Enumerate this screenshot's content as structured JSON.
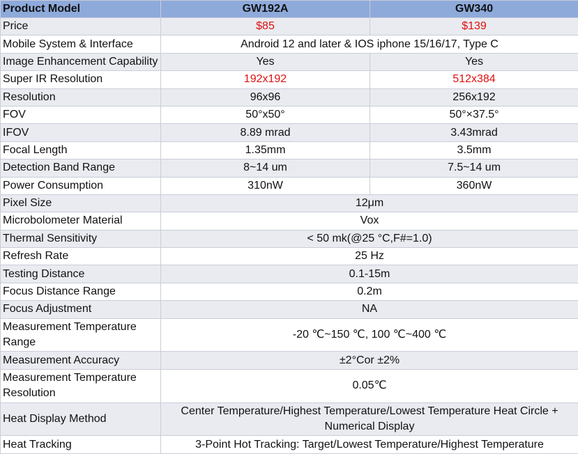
{
  "table": {
    "header": [
      "Product Model",
      "GW192A",
      "GW340"
    ],
    "rows": [
      [
        "Price",
        "$85",
        "$139"
      ],
      [
        "Mobile System & Interface",
        "Android 12 and later & IOS iphone 15/16/17, Type C"
      ],
      [
        "Image Enhancement Capability",
        "Yes",
        "Yes"
      ],
      [
        "Super IR Resolution",
        "192x192",
        "512x384"
      ],
      [
        "Resolution",
        "96x96",
        "256x192"
      ],
      [
        "FOV",
        "50°x50°",
        "50°×37.5°"
      ],
      [
        "IFOV",
        "8.89 mrad",
        "3.43mrad"
      ],
      [
        "Focal Length",
        "1.35mm",
        "3.5mm"
      ],
      [
        "Detection Band Range",
        "8~14 um",
        "7.5~14 um"
      ],
      [
        "Power Consumption",
        "310nW",
        "360nW"
      ],
      [
        "Pixel Size",
        "12μm"
      ],
      [
        "Microbolometer Material",
        "Vox"
      ],
      [
        "Thermal Sensitivity",
        "< 50 mk(@25 °C,F#=1.0)"
      ],
      [
        "Refresh Rate",
        "25 Hz"
      ],
      [
        "Testing Distance",
        "0.1-15m"
      ],
      [
        "Focus Distance Range",
        "0.2m"
      ],
      [
        "Focus Adjustment",
        "NA"
      ],
      [
        "Measurement Temperature Range",
        "-20 ℃~150 ℃, 100 ℃~400 ℃"
      ],
      [
        "Measurement Accuracy",
        "±2°Cor ±2%"
      ],
      [
        "Measurement Temperature Resolution",
        "0.05℃"
      ],
      [
        "Heat Display Method",
        "Center Temperature/Highest Temperature/Lowest Temperature Heat Circle + Numerical Display"
      ],
      [
        "Heat Tracking",
        "3-Point Hot Tracking: Target/Lowest Temperature/Highest Temperature"
      ]
    ]
  }
}
